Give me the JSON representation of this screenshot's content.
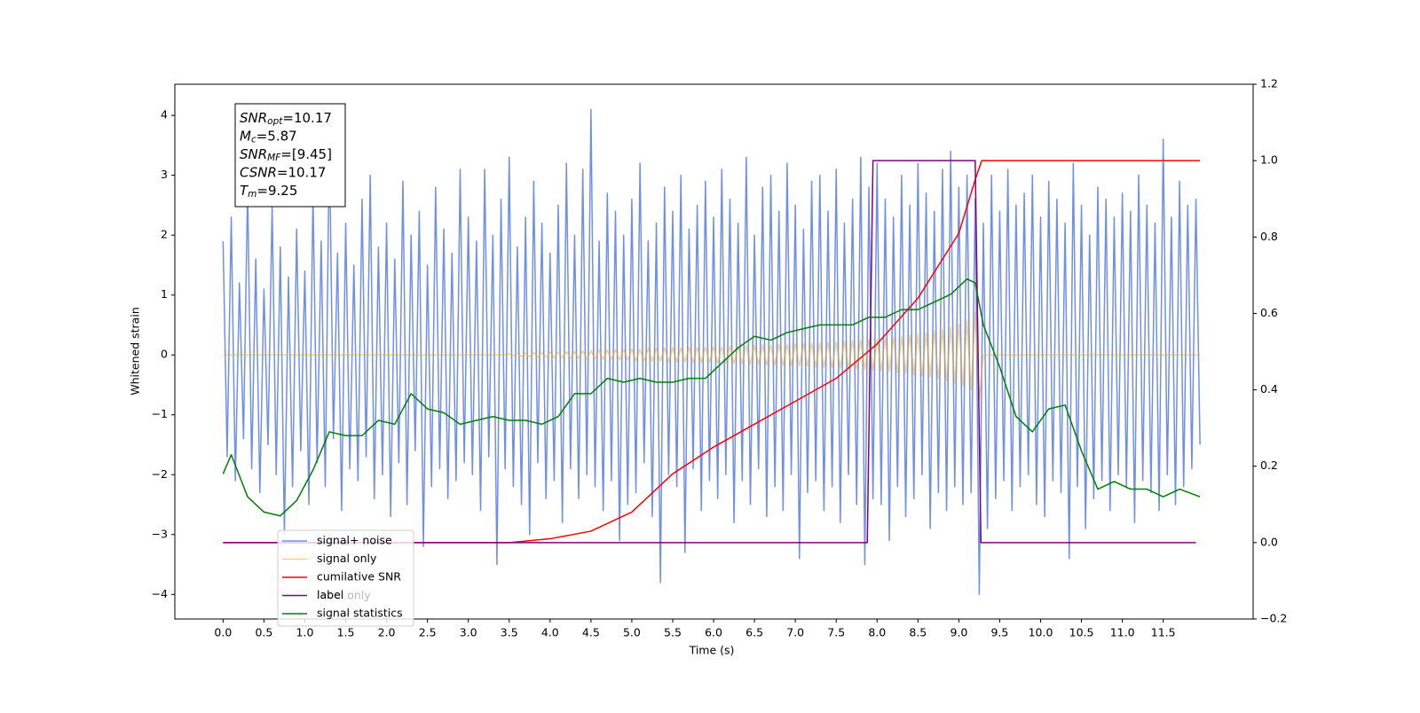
{
  "chart_data": {
    "type": "line",
    "x_label": "Time (s)",
    "y_label": "Whitened strain",
    "xlim": [
      -0.59,
      12.6
    ],
    "ylim": [
      -4.41,
      4.52
    ],
    "y2lim": [
      -0.2,
      1.2
    ],
    "xticks": [
      {
        "value": 0,
        "label": "0.0"
      },
      0.5,
      {
        "value": 1,
        "label": "1.0"
      },
      1.5,
      {
        "value": 2,
        "label": "2.0"
      },
      2.5,
      {
        "value": 3,
        "label": "3.0"
      },
      3.5,
      {
        "value": 4,
        "label": "4.0"
      },
      4.5,
      {
        "value": 5,
        "label": "5.0"
      },
      5.5,
      {
        "value": 6,
        "label": "6.0"
      },
      6.5,
      {
        "value": 7,
        "label": "7.0"
      },
      7.5,
      {
        "value": 8,
        "label": "8.0"
      },
      8.5,
      {
        "value": 9,
        "label": "9.0"
      },
      9.5,
      {
        "value": 10,
        "label": "10.0"
      },
      10.5,
      {
        "value": 11,
        "label": "11.0"
      },
      11.5
    ],
    "yticks": [
      {
        "value": -4,
        "label": "−4"
      },
      {
        "value": -3,
        "label": "−3"
      },
      {
        "value": -2,
        "label": "−2"
      },
      {
        "value": -1,
        "label": "−1"
      },
      0,
      1,
      2,
      3,
      4
    ],
    "y2ticks": [
      {
        "value": -0.2,
        "label": "−0.2"
      },
      {
        "value": 0,
        "label": "0.0"
      },
      0.2,
      0.4,
      0.6,
      0.8,
      {
        "value": 1,
        "label": "1.0"
      },
      1.2
    ],
    "legend": "lower left",
    "legend_overlap_text": "label only",
    "annotation_lines": [
      {
        "text": "SNR",
        "sub": "opt",
        "rest": "=10.17"
      },
      {
        "text": "M",
        "sub": "c",
        "rest": "=5.87"
      },
      {
        "text": "SNR",
        "sub": "MF",
        "rest": "=[9.45]"
      },
      {
        "text": "CSNR",
        "rest": "=10.17"
      },
      {
        "text": "T",
        "sub": "m",
        "rest": "=9.25"
      }
    ],
    "x": [
      0,
      0.05,
      0.1,
      0.15,
      0.2,
      0.25,
      0.3,
      0.35,
      0.4,
      0.45,
      0.5,
      0.55,
      0.6,
      0.65,
      0.7,
      0.75,
      0.8,
      0.85,
      0.9,
      0.95,
      1,
      1.05,
      1.1,
      1.15,
      1.2,
      1.25,
      1.3,
      1.35,
      1.4,
      1.45,
      1.5,
      1.55,
      1.6,
      1.65,
      1.7,
      1.75,
      1.8,
      1.85,
      1.9,
      1.95,
      2,
      2.05,
      2.1,
      2.15,
      2.2,
      2.25,
      2.3,
      2.35,
      2.4,
      2.45,
      2.5,
      2.55,
      2.6,
      2.65,
      2.7,
      2.75,
      2.8,
      2.85,
      2.9,
      2.95,
      3,
      3.05,
      3.1,
      3.15,
      3.2,
      3.25,
      3.3,
      3.35,
      3.4,
      3.45,
      3.5,
      3.55,
      3.6,
      3.65,
      3.7,
      3.75,
      3.8,
      3.85,
      3.9,
      3.95,
      4,
      4.05,
      4.1,
      4.15,
      4.2,
      4.25,
      4.3,
      4.35,
      4.4,
      4.45,
      4.5,
      4.55,
      4.6,
      4.65,
      4.7,
      4.75,
      4.8,
      4.85,
      4.9,
      4.95,
      5,
      5.05,
      5.1,
      5.15,
      5.2,
      5.25,
      5.3,
      5.35,
      5.4,
      5.45,
      5.5,
      5.55,
      5.6,
      5.65,
      5.7,
      5.75,
      5.8,
      5.85,
      5.9,
      5.95,
      6,
      6.05,
      6.1,
      6.15,
      6.2,
      6.25,
      6.3,
      6.35,
      6.4,
      6.45,
      6.5,
      6.55,
      6.6,
      6.65,
      6.7,
      6.75,
      6.8,
      6.85,
      6.9,
      6.95,
      7,
      7.05,
      7.1,
      7.15,
      7.2,
      7.25,
      7.3,
      7.35,
      7.4,
      7.45,
      7.5,
      7.55,
      7.6,
      7.65,
      7.7,
      7.75,
      7.8,
      7.85,
      7.9,
      7.95,
      8,
      8.05,
      8.1,
      8.15,
      8.2,
      8.25,
      8.3,
      8.35,
      8.4,
      8.45,
      8.5,
      8.55,
      8.6,
      8.65,
      8.7,
      8.75,
      8.8,
      8.85,
      8.9,
      8.95,
      9,
      9.05,
      9.1,
      9.15,
      9.2,
      9.25,
      9.3,
      9.35,
      9.4,
      9.45,
      9.5,
      9.55,
      9.6,
      9.65,
      9.7,
      9.75,
      9.8,
      9.85,
      9.9,
      9.95,
      10,
      10.05,
      10.1,
      10.15,
      10.2,
      10.25,
      10.3,
      10.35,
      10.4,
      10.45,
      10.5,
      10.55,
      10.6,
      10.65,
      10.7,
      10.75,
      10.8,
      10.85,
      10.9,
      10.95,
      11,
      11.05,
      11.1,
      11.15,
      11.2,
      11.25,
      11.3,
      11.35,
      11.4,
      11.45,
      11.5,
      11.55,
      11.6,
      11.65,
      11.7,
      11.75,
      11.8,
      11.85,
      11.9,
      11.95
    ],
    "series": [
      {
        "name": "signal+ noise",
        "color": "#7090e6",
        "values": [
          1.9,
          -1.7,
          2.3,
          -2.1,
          1.2,
          -1.4,
          2.8,
          -1.9,
          1.6,
          -2.3,
          1.1,
          -1.5,
          2.5,
          -2.0,
          1.8,
          -3.0,
          1.3,
          -2.2,
          2.1,
          -1.6,
          1.4,
          -2.5,
          2.7,
          -1.8,
          1.9,
          -2.2,
          3.6,
          -1.4,
          1.7,
          -2.6,
          2.2,
          -1.9,
          1.5,
          -2.1,
          2.6,
          -1.7,
          3.0,
          -2.4,
          1.8,
          -2.0,
          2.2,
          -2.7,
          1.6,
          -1.8,
          2.9,
          -2.5,
          2.0,
          -1.6,
          2.4,
          -3.2,
          1.5,
          -2.2,
          2.8,
          -1.9,
          2.1,
          -2.4,
          1.7,
          -2.1,
          3.1,
          -1.8,
          2.3,
          -2.0,
          1.9,
          -2.6,
          3.1,
          -1.7,
          2.0,
          -3.5,
          2.6,
          -1.9,
          3.3,
          -2.2,
          1.8,
          -2.5,
          2.3,
          -3.0,
          2.9,
          -1.8,
          2.2,
          -2.4,
          1.7,
          -2.1,
          2.5,
          -2.8,
          3.2,
          -1.9,
          2.0,
          -2.4,
          3.1,
          -2.0,
          4.1,
          -2.2,
          1.9,
          -2.6,
          2.7,
          -2.1,
          2.4,
          -3.1,
          2.0,
          -2.5,
          2.6,
          -2.3,
          3.2,
          -1.8,
          1.9,
          -2.7,
          2.2,
          -3.8,
          2.8,
          -2.0,
          2.4,
          -2.2,
          3.0,
          -3.3,
          2.1,
          -1.9,
          2.5,
          -2.6,
          2.9,
          -2.1,
          2.3,
          -2.4,
          3.1,
          -2.0,
          2.6,
          -2.8,
          2.2,
          -2.1,
          3.3,
          -2.5,
          2.0,
          -1.9,
          2.8,
          -2.7,
          3.0,
          -2.2,
          2.4,
          -2.6,
          3.2,
          -2.0,
          2.5,
          -3.4,
          2.1,
          -2.3,
          2.9,
          -2.1,
          3.0,
          -2.6,
          2.4,
          -2.2,
          3.1,
          -2.8,
          2.2,
          -2.0,
          2.6,
          -2.5,
          3.3,
          -3.5,
          2.8,
          -2.4,
          3.2,
          -2.5,
          2.6,
          -3.1,
          2.3,
          -2.2,
          3.0,
          -2.7,
          2.5,
          -2.4,
          3.2,
          -2.0,
          2.7,
          -2.9,
          2.4,
          -2.3,
          3.1,
          -2.6,
          3.4,
          -2.2,
          2.8,
          -2.5,
          3.0,
          -2.3,
          2.6,
          -4.0,
          2.2,
          -2.9,
          3.0,
          -2.4,
          2.4,
          -2.1,
          3.1,
          -2.6,
          2.5,
          -2.2,
          2.7,
          -2.0,
          3.0,
          -2.5,
          2.3,
          -2.7,
          2.9,
          -2.1,
          2.6,
          -2.3,
          2.2,
          -3.4,
          3.2,
          -2.2,
          2.5,
          -2.9,
          2.0,
          -2.4,
          2.8,
          -2.1,
          2.6,
          -2.6,
          2.3,
          -2.0,
          2.7,
          -2.2,
          2.4,
          -2.8,
          3.0,
          -2.1,
          2.5,
          -2.3,
          2.2,
          -2.6,
          3.6,
          -2.0,
          2.3,
          -2.5,
          2.9,
          -2.2,
          2.5,
          -1.9,
          2.6,
          -1.5
        ]
      },
      {
        "name": "signal only",
        "color": "#ffa500",
        "values": [
          0,
          0,
          0,
          0,
          0,
          0,
          0,
          0,
          0,
          0,
          0,
          0,
          0,
          0,
          0,
          0,
          0,
          0,
          0,
          0,
          0,
          0,
          0,
          0,
          0,
          0,
          0,
          0,
          0,
          0,
          0,
          0,
          0,
          0,
          0,
          0,
          0,
          0,
          0,
          0,
          0,
          0,
          0,
          0,
          0,
          0,
          0,
          0,
          0,
          0,
          0,
          0,
          0,
          0,
          0,
          0,
          0,
          0,
          0,
          0,
          0,
          0,
          0,
          0,
          0,
          0,
          0,
          0,
          0,
          0,
          0.02,
          -0.02,
          0.03,
          -0.03,
          0.03,
          -0.03,
          0.04,
          -0.04,
          0.04,
          -0.04,
          0.05,
          -0.05,
          0.05,
          -0.05,
          0.06,
          -0.06,
          0.06,
          -0.06,
          0.07,
          -0.07,
          0.07,
          -0.07,
          0.08,
          -0.08,
          0.08,
          -0.08,
          0.09,
          -0.09,
          0.09,
          -0.09,
          0.1,
          -0.1,
          0.1,
          -0.1,
          0.11,
          -0.11,
          0.11,
          -0.11,
          0.12,
          -0.12,
          0.12,
          -0.12,
          0.12,
          -0.12,
          0.13,
          -0.13,
          0.13,
          -0.13,
          0.13,
          -0.13,
          0.14,
          -0.14,
          0.14,
          -0.14,
          0.15,
          -0.15,
          0.15,
          -0.15,
          0.16,
          -0.16,
          0.16,
          -0.16,
          0.17,
          -0.17,
          0.17,
          -0.17,
          0.18,
          -0.18,
          0.18,
          -0.18,
          0.19,
          -0.19,
          0.19,
          -0.19,
          0.2,
          -0.2,
          0.21,
          -0.21,
          0.21,
          -0.21,
          0.22,
          -0.22,
          0.23,
          -0.23,
          0.24,
          -0.24,
          0.25,
          -0.25,
          0.26,
          -0.26,
          0.27,
          -0.27,
          0.28,
          -0.28,
          0.3,
          -0.3,
          0.31,
          -0.31,
          0.33,
          -0.33,
          0.35,
          -0.35,
          0.37,
          -0.37,
          0.4,
          -0.4,
          0.43,
          -0.43,
          0.47,
          -0.47,
          0.52,
          -0.52,
          0.58,
          -0.58,
          0.7,
          -0.75,
          0,
          0,
          0,
          0,
          0,
          0,
          0,
          0,
          0,
          0,
          0,
          0,
          0,
          0,
          0,
          0,
          0,
          0,
          0,
          0,
          0,
          0,
          0,
          0,
          0,
          0,
          0,
          0,
          0,
          0,
          0,
          0,
          0,
          0,
          0,
          0,
          0,
          0,
          0,
          0,
          0,
          0,
          0,
          0,
          0,
          0,
          0,
          0,
          0,
          0,
          0,
          0,
          0,
          0
        ]
      },
      {
        "name": "cumilative SNR",
        "color": "#ff0000",
        "axis": "y2",
        "x": [
          0,
          3.5,
          4,
          4.5,
          5,
          5.5,
          6,
          6.5,
          7,
          7.5,
          8,
          8.5,
          9,
          9.2,
          9.28,
          11.95
        ],
        "values": [
          0,
          0,
          0.01,
          0.03,
          0.08,
          0.18,
          0.25,
          0.31,
          0.37,
          0.43,
          0.52,
          0.64,
          0.81,
          0.95,
          1,
          1
        ]
      },
      {
        "name": "label",
        "color": "#800080",
        "axis": "y2",
        "x": [
          0,
          7.88,
          7.95,
          9.2,
          9.27,
          11.9
        ],
        "values": [
          0,
          0,
          1,
          1,
          0,
          0
        ]
      },
      {
        "name": "signal statistics",
        "color": "#008000",
        "axis": "y2",
        "x": [
          0,
          0.1,
          0.3,
          0.5,
          0.7,
          0.9,
          1.1,
          1.3,
          1.5,
          1.7,
          1.9,
          2.1,
          2.3,
          2.5,
          2.7,
          2.9,
          3.1,
          3.3,
          3.5,
          3.7,
          3.9,
          4.1,
          4.3,
          4.5,
          4.7,
          4.9,
          5.1,
          5.3,
          5.5,
          5.7,
          5.9,
          6.1,
          6.3,
          6.5,
          6.7,
          6.9,
          7.1,
          7.3,
          7.5,
          7.7,
          7.9,
          8.1,
          8.3,
          8.5,
          8.7,
          8.9,
          9.1,
          9.2,
          9.3,
          9.5,
          9.7,
          9.9,
          10.1,
          10.3,
          10.5,
          10.7,
          10.9,
          11.1,
          11.3,
          11.5,
          11.7,
          11.95
        ],
        "values": [
          0.18,
          0.23,
          0.12,
          0.08,
          0.07,
          0.11,
          0.19,
          0.29,
          0.28,
          0.28,
          0.32,
          0.31,
          0.39,
          0.35,
          0.34,
          0.31,
          0.32,
          0.33,
          0.32,
          0.32,
          0.31,
          0.33,
          0.39,
          0.39,
          0.43,
          0.42,
          0.43,
          0.42,
          0.42,
          0.43,
          0.43,
          0.47,
          0.51,
          0.54,
          0.53,
          0.55,
          0.56,
          0.57,
          0.57,
          0.57,
          0.59,
          0.59,
          0.61,
          0.61,
          0.63,
          0.65,
          0.69,
          0.68,
          0.57,
          0.46,
          0.33,
          0.29,
          0.35,
          0.36,
          0.24,
          0.14,
          0.16,
          0.14,
          0.14,
          0.12,
          0.14,
          0.12
        ]
      }
    ]
  }
}
